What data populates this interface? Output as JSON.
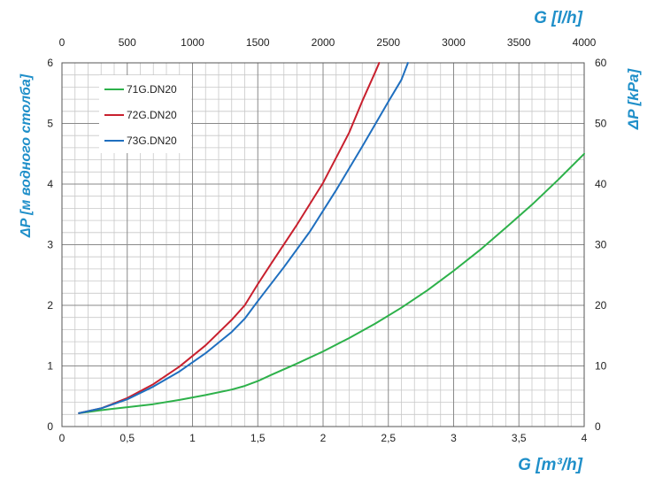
{
  "chart_data": {
    "type": "line",
    "x_bottom_label": "G [m³/h]",
    "x_top_label": "G [l/h]",
    "y_left_label": "ΔP [м водного столба]",
    "y_right_label": "ΔP [kPa]",
    "x_bottom_ticks": [
      "0",
      "0,5",
      "1",
      "1,5",
      "2",
      "2,5",
      "3",
      "3,5",
      "4"
    ],
    "x_top_ticks": [
      "0",
      "500",
      "1000",
      "1500",
      "2000",
      "2500",
      "3000",
      "3500",
      "4000"
    ],
    "y_left_ticks": [
      "0",
      "1",
      "2",
      "3",
      "4",
      "5",
      "6"
    ],
    "y_right_ticks": [
      "0",
      "10",
      "20",
      "30",
      "40",
      "50",
      "60"
    ],
    "xlim": [
      0,
      4
    ],
    "ylim": [
      0,
      6
    ],
    "grid": true,
    "legend_position": "top-left",
    "series": [
      {
        "name": "71G.DN20",
        "color": "#2db14a",
        "points": [
          [
            0.13,
            0.22
          ],
          [
            0.3,
            0.27
          ],
          [
            0.5,
            0.32
          ],
          [
            0.7,
            0.37
          ],
          [
            0.9,
            0.44
          ],
          [
            1.1,
            0.52
          ],
          [
            1.3,
            0.61
          ],
          [
            1.4,
            0.67
          ],
          [
            1.5,
            0.75
          ],
          [
            1.6,
            0.85
          ],
          [
            1.8,
            1.04
          ],
          [
            2.0,
            1.24
          ],
          [
            2.2,
            1.46
          ],
          [
            2.4,
            1.7
          ],
          [
            2.6,
            1.96
          ],
          [
            2.8,
            2.25
          ],
          [
            3.0,
            2.57
          ],
          [
            3.2,
            2.91
          ],
          [
            3.4,
            3.28
          ],
          [
            3.6,
            3.66
          ],
          [
            3.8,
            4.07
          ],
          [
            4.0,
            4.5
          ]
        ]
      },
      {
        "name": "72G.DN20",
        "color": "#c8202e",
        "points": [
          [
            0.13,
            0.22
          ],
          [
            0.3,
            0.3
          ],
          [
            0.5,
            0.47
          ],
          [
            0.7,
            0.7
          ],
          [
            0.9,
            0.99
          ],
          [
            1.1,
            1.34
          ],
          [
            1.3,
            1.76
          ],
          [
            1.4,
            2.0
          ],
          [
            1.5,
            2.35
          ],
          [
            1.6,
            2.68
          ],
          [
            1.8,
            3.33
          ],
          [
            2.0,
            4.02
          ],
          [
            2.2,
            4.85
          ],
          [
            2.3,
            5.37
          ],
          [
            2.4,
            5.85
          ],
          [
            2.43,
            6.0
          ]
        ]
      },
      {
        "name": "73G.DN20",
        "color": "#1f6fbf",
        "points": [
          [
            0.13,
            0.22
          ],
          [
            0.3,
            0.3
          ],
          [
            0.5,
            0.45
          ],
          [
            0.7,
            0.66
          ],
          [
            0.9,
            0.91
          ],
          [
            1.1,
            1.21
          ],
          [
            1.3,
            1.56
          ],
          [
            1.4,
            1.78
          ],
          [
            1.5,
            2.07
          ],
          [
            1.7,
            2.63
          ],
          [
            1.9,
            3.22
          ],
          [
            2.1,
            3.9
          ],
          [
            2.3,
            4.62
          ],
          [
            2.5,
            5.36
          ],
          [
            2.6,
            5.72
          ],
          [
            2.65,
            6.0
          ]
        ]
      }
    ]
  }
}
